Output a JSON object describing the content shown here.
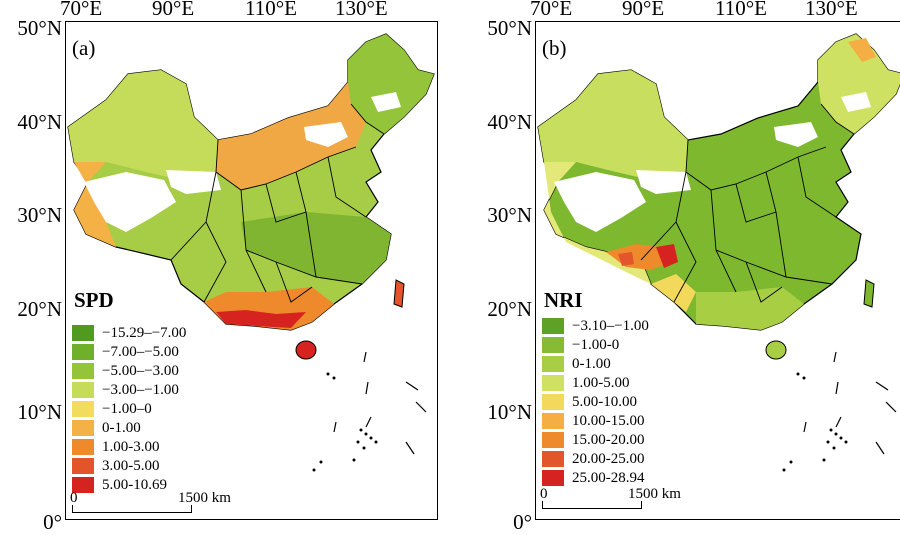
{
  "longitude_labels": [
    "70°E",
    "90°E",
    "110°E",
    "130°E"
  ],
  "latitude_labels": [
    "50°N",
    "40°N",
    "30°N",
    "20°N",
    "10°N",
    "0°"
  ],
  "panels": [
    {
      "letter": "(a)",
      "legend_title": "SPD",
      "legend": [
        {
          "label": "−15.29–−7.00",
          "color": "#4f9a1f"
        },
        {
          "label": "−7.00–−5.00",
          "color": "#6faf2a"
        },
        {
          "label": "−5.00–−3.00",
          "color": "#93c43a"
        },
        {
          "label": "−3.00–−1.00",
          "color": "#c4dc5a"
        },
        {
          "label": "−1.00–0",
          "color": "#f2dc5e"
        },
        {
          "label": "0-1.00",
          "color": "#f4b246"
        },
        {
          "label": "1.00-3.00",
          "color": "#ee8a2c"
        },
        {
          "label": "3.00-5.00",
          "color": "#e3542a"
        },
        {
          "label": "5.00-10.69",
          "color": "#d7231f"
        }
      ],
      "scale": {
        "start": "0",
        "end": "1500 km"
      }
    },
    {
      "letter": "(b)",
      "legend_title": "NRI",
      "legend": [
        {
          "label": "−3.10–−1.00",
          "color": "#5ea126"
        },
        {
          "label": "−1.00-0",
          "color": "#86bb33"
        },
        {
          "label": "0-1.00",
          "color": "#a8cf44"
        },
        {
          "label": "1.00-5.00",
          "color": "#cfe163"
        },
        {
          "label": "5.00-10.00",
          "color": "#f3d95b"
        },
        {
          "label": "10.00-15.00",
          "color": "#f4ae44"
        },
        {
          "label": "15.00-20.00",
          "color": "#ee8a2c"
        },
        {
          "label": "20.00-25.00",
          "color": "#e3552a"
        },
        {
          "label": "25.00-28.94",
          "color": "#d7231f"
        }
      ],
      "scale": {
        "start": "0",
        "end": "1500 km"
      }
    }
  ]
}
